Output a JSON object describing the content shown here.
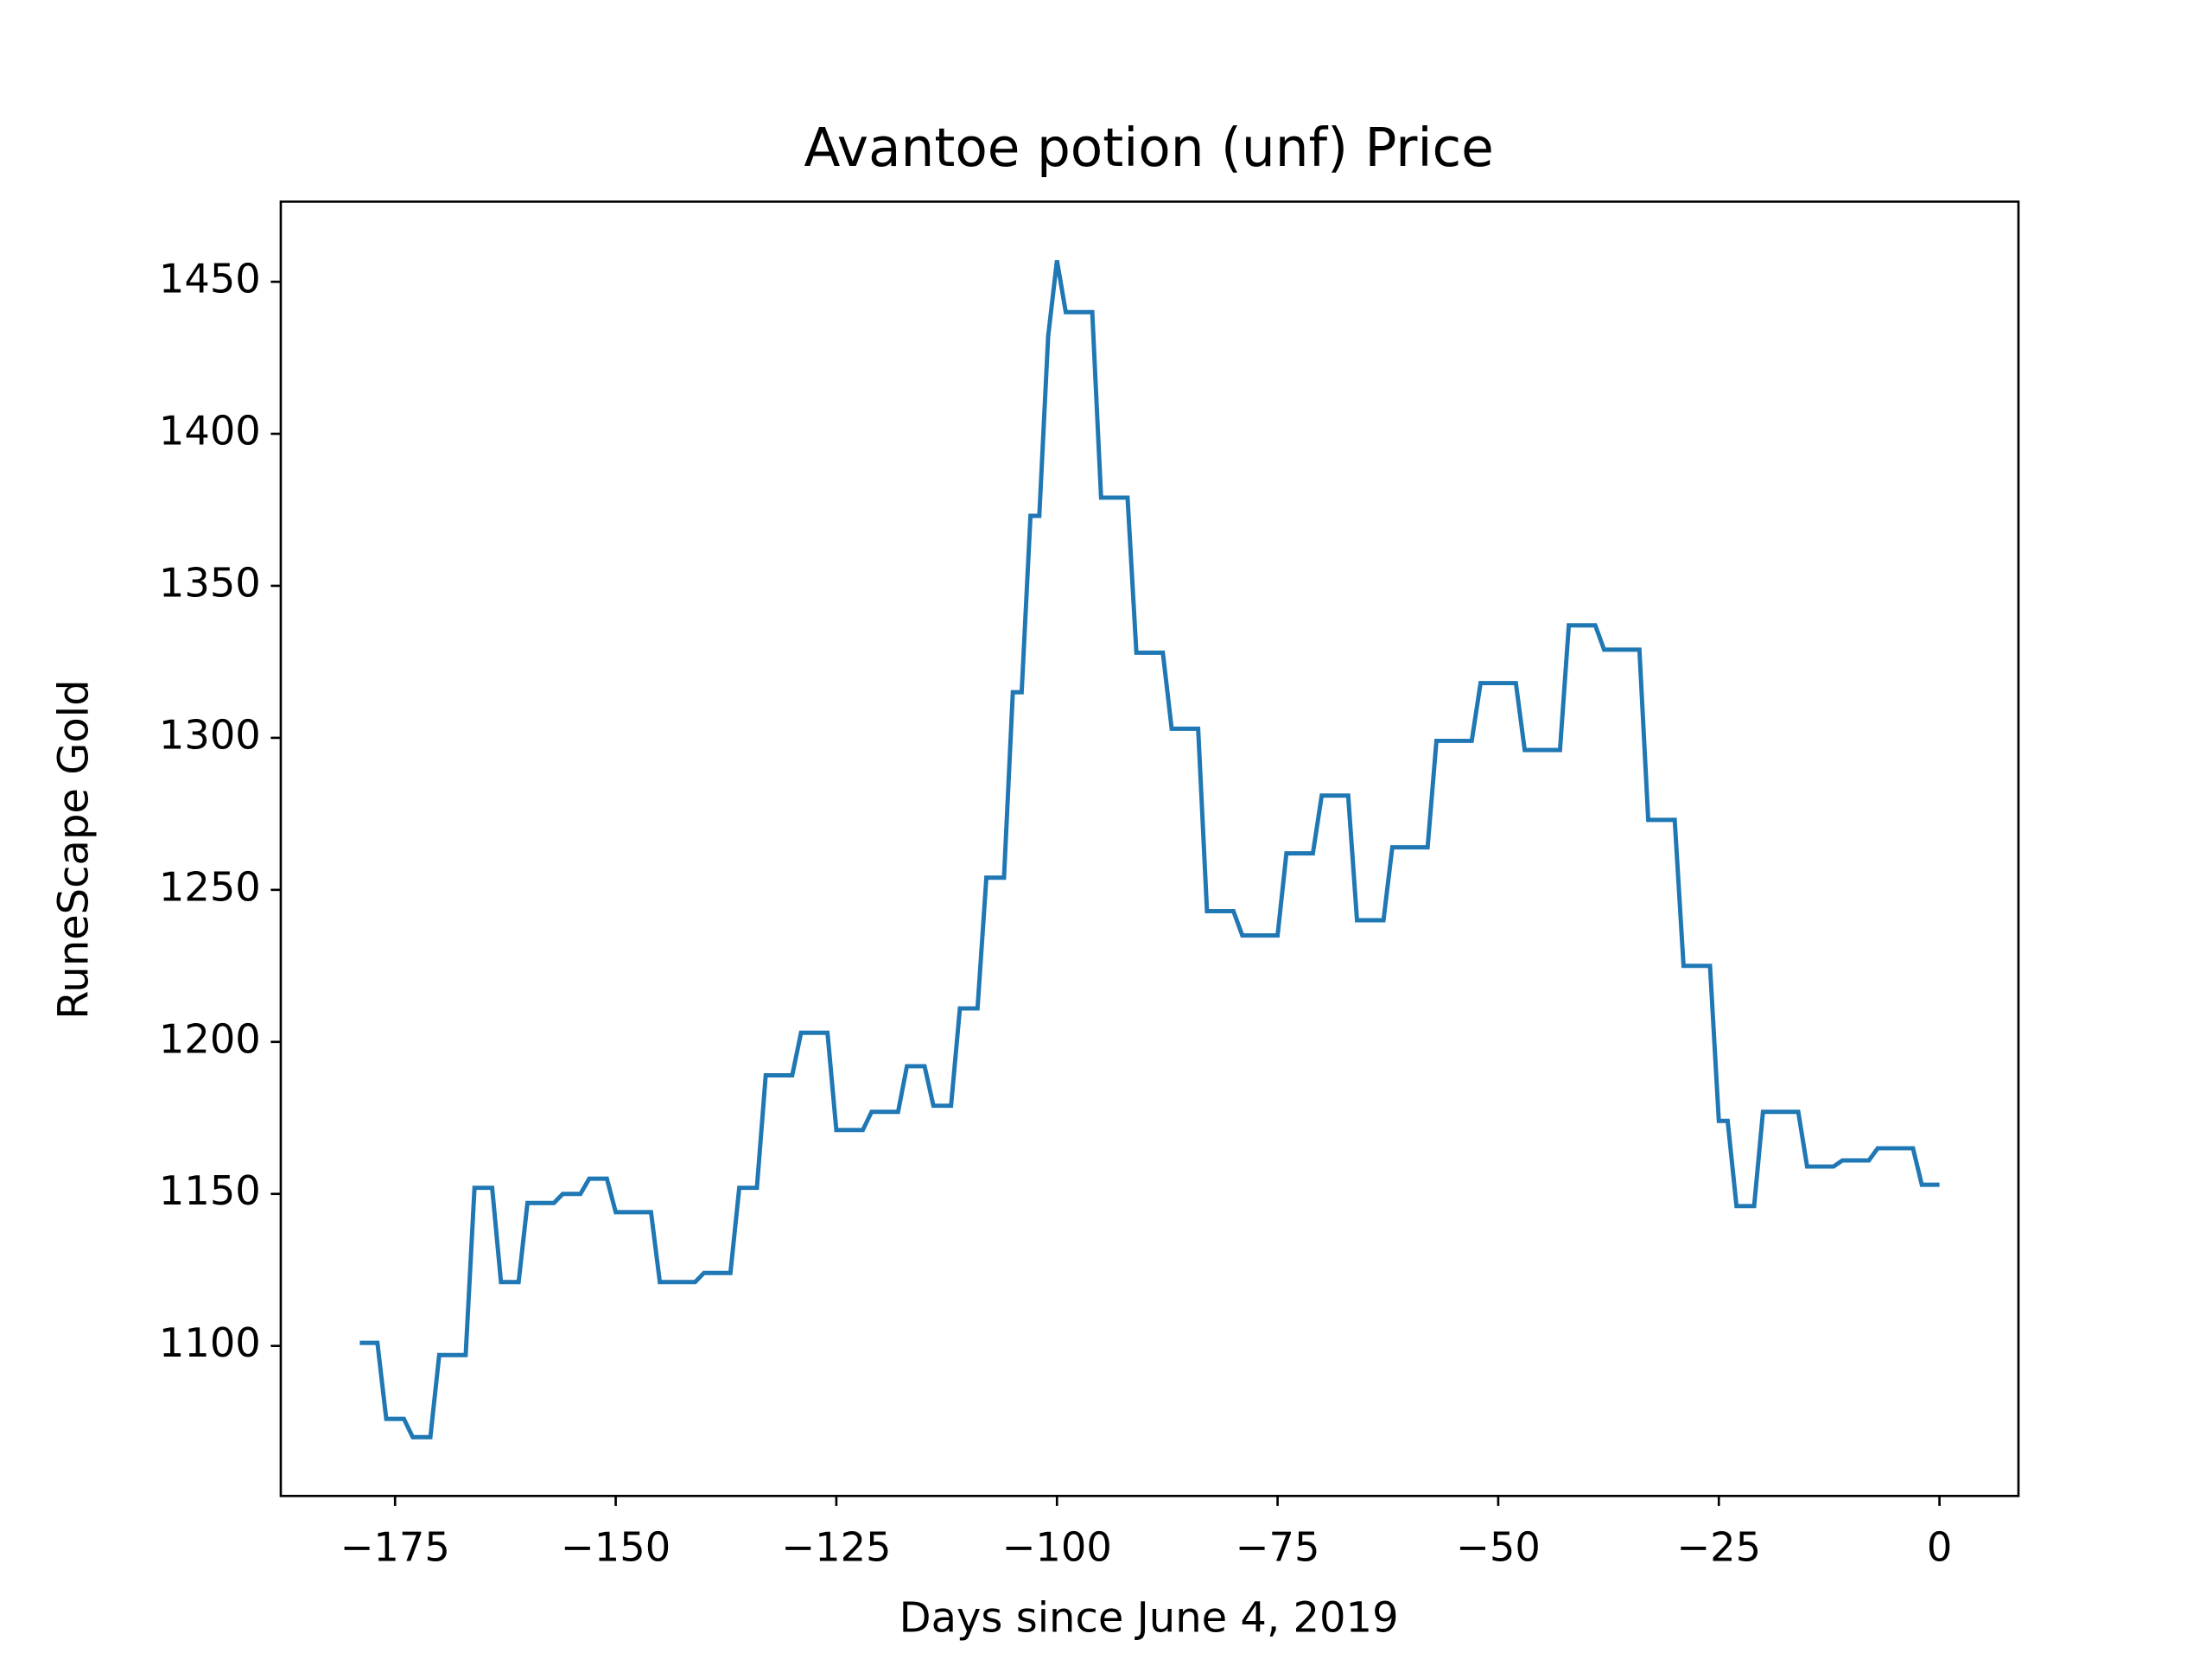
{
  "chart_data": {
    "type": "line",
    "title": "Avantoe potion (unf) Price",
    "x_label": "Days since June 4, 2019",
    "y_label": "RuneScape Gold",
    "x": [
      -179,
      -177,
      -176,
      -174,
      -173,
      -171,
      -170,
      -167,
      -166,
      -164,
      -163,
      -161,
      -160,
      -157,
      -156,
      -154,
      -153,
      -151,
      -150,
      -146,
      -145,
      -141,
      -140,
      -137,
      -136,
      -134,
      -133,
      -130,
      -129,
      -126,
      -125,
      -122,
      -121,
      -118,
      -117,
      -115,
      -114,
      -112,
      -111,
      -109,
      -108,
      -106,
      -105,
      -104,
      -103,
      -102,
      -101,
      -100,
      -99,
      -96,
      -95,
      -92,
      -91,
      -88,
      -87,
      -84,
      -83,
      -80,
      -79,
      -75,
      -74,
      -71,
      -70,
      -67,
      -66,
      -63,
      -62,
      -58,
      -57,
      -53,
      -52,
      -48,
      -47,
      -43,
      -42,
      -39,
      -38,
      -34,
      -33,
      -30,
      -29,
      -26,
      -25,
      -24,
      -23,
      -21,
      -20,
      -16,
      -15,
      -12,
      -11,
      -8,
      -7,
      -3,
      -2,
      0
    ],
    "series": [
      {
        "name": "price",
        "color": "#1f77b4",
        "values": [
          1101,
          1101,
          1076,
          1076,
          1070,
          1070,
          1097,
          1097,
          1152,
          1152,
          1121,
          1121,
          1147,
          1147,
          1150,
          1150,
          1155,
          1155,
          1144,
          1144,
          1121,
          1121,
          1124,
          1124,
          1152,
          1152,
          1189,
          1189,
          1203,
          1203,
          1171,
          1171,
          1177,
          1177,
          1192,
          1192,
          1179,
          1179,
          1211,
          1211,
          1254,
          1254,
          1315,
          1315,
          1373,
          1373,
          1432,
          1457,
          1440,
          1440,
          1379,
          1379,
          1328,
          1328,
          1303,
          1303,
          1243,
          1243,
          1235,
          1235,
          1262,
          1262,
          1281,
          1281,
          1240,
          1240,
          1264,
          1264,
          1299,
          1299,
          1318,
          1318,
          1296,
          1296,
          1337,
          1337,
          1329,
          1329,
          1273,
          1273,
          1225,
          1225,
          1174,
          1174,
          1146,
          1146,
          1177,
          1177,
          1159,
          1159,
          1161,
          1161,
          1165,
          1165,
          1153,
          1153
        ]
      }
    ],
    "xlim": [
      -187.95,
      8.95
    ],
    "ylim": [
      1050.65,
      1476.35
    ],
    "xticks": [
      {
        "value": -175,
        "label": "−175"
      },
      {
        "value": -150,
        "label": "−150"
      },
      {
        "value": -125,
        "label": "−125"
      },
      {
        "value": -100,
        "label": "−100"
      },
      {
        "value": -75,
        "label": "−75"
      },
      {
        "value": -50,
        "label": "−50"
      },
      {
        "value": -25,
        "label": "−25"
      },
      0
    ],
    "yticks": [
      1100,
      1150,
      1200,
      1250,
      1300,
      1350,
      1400,
      1450
    ],
    "grid": false
  }
}
